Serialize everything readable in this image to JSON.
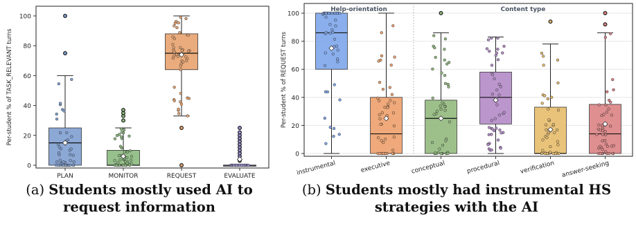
{
  "panels": [
    {
      "id": "a",
      "caption_tag": "(a)",
      "caption_line1": "Students mostly used AI to",
      "caption_line2": "request information",
      "chart_data": {
        "type": "box",
        "ylabel": "Per-student % of TASK_RELEVANT turns",
        "ylim": [
          0,
          100
        ],
        "yticks": [
          0,
          20,
          40,
          60,
          80,
          100
        ],
        "categories": [
          "PLAN",
          "MONITOR",
          "REQUEST",
          "EVALUATE"
        ],
        "colors": [
          "#7f9fd0",
          "#8cba7f",
          "#e8a36f",
          "#9b8fd0"
        ],
        "boxes": [
          {
            "q1": 0,
            "median": 15,
            "q3": 25,
            "whisker_low": 0,
            "whisker_high": 60,
            "mean": 15,
            "outliers": [
              75,
              100
            ]
          },
          {
            "q1": 0,
            "median": 0,
            "q3": 10,
            "whisker_low": 0,
            "whisker_high": 25,
            "mean": 6,
            "outliers": [
              30,
              33,
              35,
              37
            ]
          },
          {
            "q1": 64,
            "median": 75,
            "q3": 88,
            "whisker_low": 33,
            "whisker_high": 100,
            "mean": 74,
            "outliers": [
              25,
              0
            ]
          },
          {
            "q1": 0,
            "median": 0,
            "q3": 0,
            "whisker_low": 0,
            "whisker_high": 0,
            "mean": 4,
            "outliers": [
              3,
              6,
              8,
              10,
              12,
              14,
              16,
              18,
              20,
              22,
              25
            ]
          }
        ]
      }
    },
    {
      "id": "b",
      "caption_tag": "(b)",
      "caption_line1": "Students mostly had instrumental HS",
      "caption_line2": "strategies with the AI",
      "chart_data": {
        "type": "box",
        "ylabel": "Per-student % of REQUEST turns",
        "ylim": [
          0,
          100
        ],
        "yticks": [
          0,
          20,
          40,
          60,
          80,
          100
        ],
        "group_labels": [
          "Help-orientation",
          "Content type"
        ],
        "categories": [
          "instrumental",
          "executive",
          "conceptual",
          "procedural",
          "verification",
          "answer-seeking"
        ],
        "colors": [
          "#7ea6ea",
          "#eda06c",
          "#92b97e",
          "#b48bc8",
          "#e7bc6c",
          "#dc8384"
        ],
        "boxes": [
          {
            "q1": 60,
            "median": 86,
            "q3": 100,
            "whisker_low": 0,
            "whisker_high": 100,
            "mean": 75,
            "outliers": []
          },
          {
            "q1": 0,
            "median": 14,
            "q3": 40,
            "whisker_low": 0,
            "whisker_high": 100,
            "mean": 25,
            "outliers": []
          },
          {
            "q1": 0,
            "median": 25,
            "q3": 38,
            "whisker_low": 0,
            "whisker_high": 86,
            "mean": 25,
            "outliers": [
              100
            ]
          },
          {
            "q1": 21,
            "median": 40,
            "q3": 58,
            "whisker_low": 0,
            "whisker_high": 83,
            "mean": 38,
            "outliers": []
          },
          {
            "q1": 0,
            "median": 0,
            "q3": 33,
            "whisker_low": 0,
            "whisker_high": 78,
            "mean": 17,
            "outliers": [
              94
            ]
          },
          {
            "q1": 0,
            "median": 14,
            "q3": 35,
            "whisker_low": 0,
            "whisker_high": 86,
            "mean": 21,
            "outliers": [
              92,
              100
            ]
          }
        ]
      }
    }
  ]
}
